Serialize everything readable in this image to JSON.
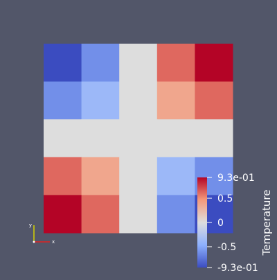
{
  "chart_data": {
    "type": "heatmap",
    "rows": 5,
    "cols": 5,
    "values": [
      [
        -0.93,
        -0.62,
        0.0,
        0.62,
        0.93
      ],
      [
        -0.62,
        -0.38,
        0.0,
        0.38,
        0.62
      ],
      [
        0.0,
        0.0,
        0.0,
        0.0,
        0.0
      ],
      [
        0.62,
        0.38,
        0.0,
        -0.38,
        -0.62
      ],
      [
        0.93,
        0.62,
        0.0,
        -0.62,
        -0.93
      ]
    ],
    "colorbar": {
      "title": "Temperature",
      "range": [
        -0.93,
        0.93
      ],
      "ticks": [
        {
          "value": 0.93,
          "label": "9.3e-01"
        },
        {
          "value": 0.5,
          "label": "0.5"
        },
        {
          "value": 0.0,
          "label": "0"
        },
        {
          "value": -0.5,
          "label": "-0.5"
        },
        {
          "value": -0.93,
          "label": "-9.3e-01"
        }
      ],
      "colormap": [
        "#3b4cc0",
        "#dddddd",
        "#b40426"
      ]
    }
  },
  "axes_triad": {
    "y_label": "y",
    "x_label": "x",
    "y_color": "#d4d400",
    "x_color": "#e02020",
    "z_color": "#ffffff"
  },
  "colors": {
    "background": "#525669"
  }
}
